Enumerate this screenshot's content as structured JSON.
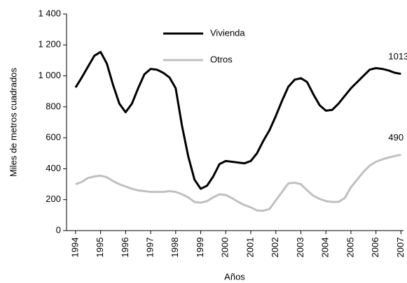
{
  "chart_data": {
    "type": "line",
    "y_label": "Miles de metros cuadrados",
    "x_label": "Años",
    "x": [
      1994,
      1994.25,
      1994.5,
      1994.75,
      1995,
      1995.25,
      1995.5,
      1995.75,
      1996,
      1996.25,
      1996.5,
      1996.75,
      1997,
      1997.25,
      1997.5,
      1997.75,
      1998,
      1998.25,
      1998.5,
      1998.75,
      1999,
      1999.25,
      1999.5,
      1999.75,
      2000,
      2000.25,
      2000.5,
      2000.75,
      2001,
      2001.25,
      2001.5,
      2001.75,
      2002,
      2002.25,
      2002.5,
      2002.75,
      2003,
      2003.25,
      2003.5,
      2003.75,
      2004,
      2004.25,
      2004.5,
      2004.75,
      2005,
      2005.25,
      2005.5,
      2005.75,
      2006,
      2006.25,
      2006.5,
      2006.75,
      2007
    ],
    "series": [
      {
        "name": "Vivienda",
        "color": "#000000",
        "values": [
          925,
          990,
          1060,
          1130,
          1155,
          1080,
          940,
          820,
          765,
          820,
          920,
          1010,
          1045,
          1040,
          1020,
          990,
          920,
          680,
          480,
          330,
          270,
          290,
          350,
          430,
          450,
          445,
          440,
          435,
          450,
          500,
          580,
          650,
          740,
          840,
          930,
          975,
          985,
          960,
          880,
          810,
          775,
          780,
          820,
          870,
          920,
          960,
          1000,
          1040,
          1050,
          1045,
          1035,
          1020,
          1013
        ]
      },
      {
        "name": "Otros",
        "color": "#c0c0c0",
        "values": [
          300,
          315,
          340,
          350,
          355,
          345,
          320,
          300,
          285,
          270,
          260,
          255,
          250,
          250,
          250,
          255,
          250,
          235,
          215,
          185,
          180,
          190,
          215,
          235,
          230,
          210,
          185,
          165,
          150,
          130,
          128,
          140,
          195,
          250,
          305,
          310,
          300,
          260,
          225,
          205,
          190,
          185,
          185,
          210,
          280,
          330,
          380,
          420,
          445,
          460,
          472,
          482,
          490
        ]
      }
    ],
    "xlim": [
      1993.64,
      2007.1
    ],
    "xticks": [
      1994,
      1995,
      1996,
      1997,
      1998,
      1999,
      2000,
      2001,
      2002,
      2003,
      2004,
      2005,
      2006,
      2007
    ],
    "ylim": [
      0,
      1400
    ],
    "yticks": [
      0,
      200,
      400,
      600,
      800,
      {
        "value": 1000,
        "label": "1 000"
      },
      {
        "value": 1200,
        "label": "1 200"
      },
      {
        "value": 1400,
        "label": "1 400"
      }
    ],
    "legend": "top-center"
  }
}
